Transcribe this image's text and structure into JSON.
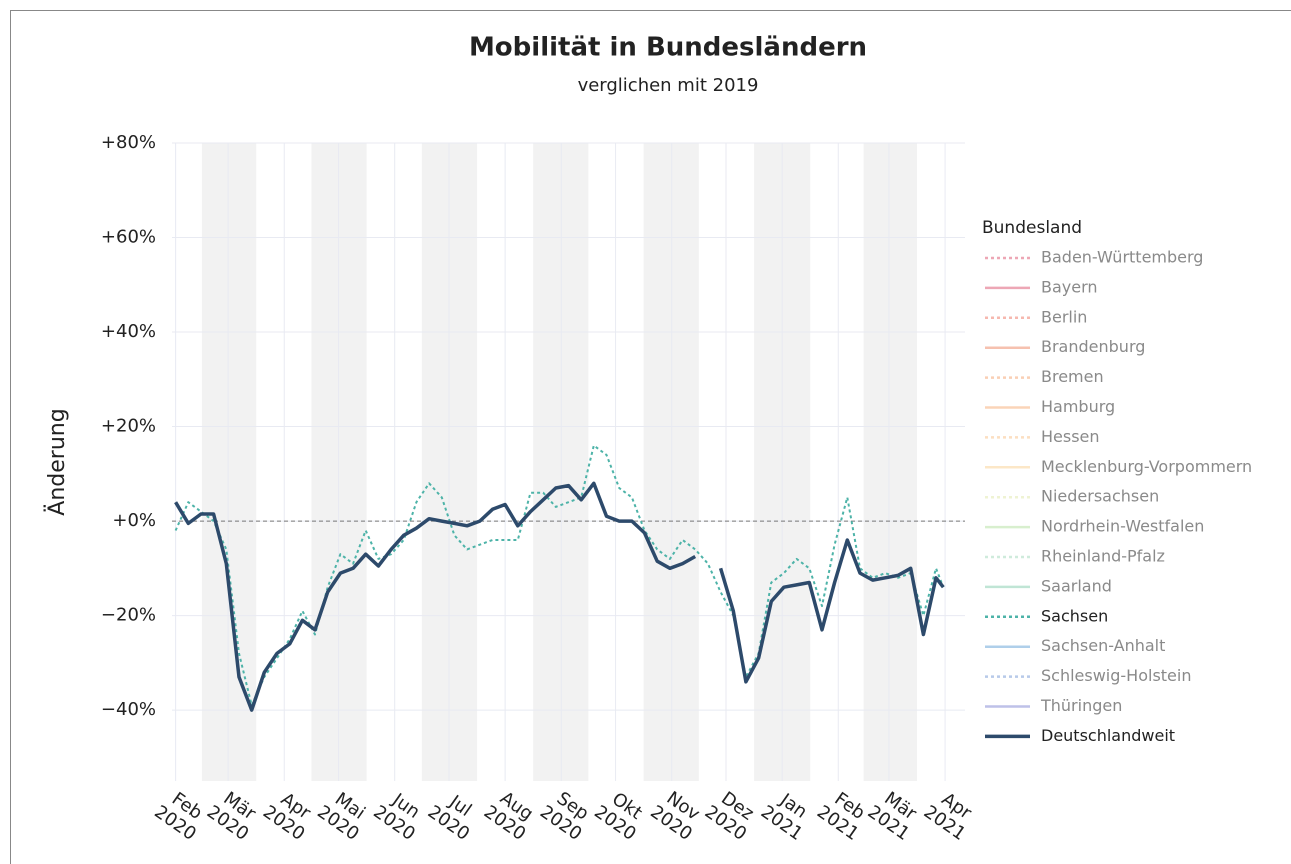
{
  "chart_data": {
    "type": "line",
    "title": "Mobilität in Bundesländern",
    "subtitle": "verglichen mit 2019",
    "y_label": "Änderung",
    "legend_title": "Bundesland",
    "legend": "right",
    "grid": true,
    "hline": 0,
    "xlim": [
      "2020-01-30",
      "2021-04-12"
    ],
    "ylim": [
      -55,
      80
    ],
    "yticks": [
      {
        "value": -40,
        "label": "−40%"
      },
      {
        "value": -20,
        "label": "−20%"
      },
      {
        "value": 0,
        "label": "+0%"
      },
      {
        "value": 20,
        "label": "+20%"
      },
      {
        "value": 40,
        "label": "+40%"
      },
      {
        "value": 60,
        "label": "+60%"
      },
      {
        "value": 80,
        "label": "+80%"
      }
    ],
    "xticks": [
      {
        "value": "2020-02",
        "label": "Feb 2020"
      },
      {
        "value": "2020-03",
        "label": "Mär 2020"
      },
      {
        "value": "2020-04",
        "label": "Apr 2020"
      },
      {
        "value": "2020-05",
        "label": "Mai 2020"
      },
      {
        "value": "2020-06",
        "label": "Jun 2020"
      },
      {
        "value": "2020-07",
        "label": "Jul 2020"
      },
      {
        "value": "2020-08",
        "label": "Aug 2020"
      },
      {
        "value": "2020-09",
        "label": "Sep 2020"
      },
      {
        "value": "2020-10",
        "label": "Okt 2020"
      },
      {
        "value": "2020-11",
        "label": "Nov 2020"
      },
      {
        "value": "2020-12",
        "label": "Dez 2020"
      },
      {
        "value": "2021-01",
        "label": "Jan 2021"
      },
      {
        "value": "2021-02",
        "label": "Feb 2021"
      },
      {
        "value": "2021-03",
        "label": "Mär 2021"
      },
      {
        "value": "2021-04",
        "label": "Apr 2021"
      }
    ],
    "x": [
      "2020-02-01",
      "2020-02-08",
      "2020-02-15",
      "2020-02-22",
      "2020-02-29",
      "2020-03-07",
      "2020-03-14",
      "2020-03-21",
      "2020-03-28",
      "2020-04-04",
      "2020-04-11",
      "2020-04-18",
      "2020-04-25",
      "2020-05-02",
      "2020-05-09",
      "2020-05-16",
      "2020-05-23",
      "2020-05-30",
      "2020-06-06",
      "2020-06-13",
      "2020-06-20",
      "2020-06-27",
      "2020-07-04",
      "2020-07-11",
      "2020-07-18",
      "2020-07-25",
      "2020-08-01",
      "2020-08-08",
      "2020-08-15",
      "2020-08-22",
      "2020-08-29",
      "2020-09-05",
      "2020-09-12",
      "2020-09-19",
      "2020-09-26",
      "2020-10-03",
      "2020-10-10",
      "2020-10-17",
      "2020-10-24",
      "2020-10-31",
      "2020-11-07",
      "2020-11-14",
      "2020-11-21",
      "2020-11-28",
      "2020-12-05",
      "2020-12-12",
      "2020-12-19",
      "2020-12-26",
      "2021-01-02",
      "2021-01-09",
      "2021-01-16",
      "2021-01-23",
      "2021-01-30",
      "2021-02-06",
      "2021-02-13",
      "2021-02-20",
      "2021-02-27",
      "2021-03-06",
      "2021-03-13",
      "2021-03-20",
      "2021-03-27",
      "2021-03-31"
    ],
    "series": [
      {
        "name": "Baden-Württemberg",
        "color": "#e0607a",
        "dash": "dot",
        "visible": false
      },
      {
        "name": "Bayern",
        "color": "#e0607a",
        "dash": "solid",
        "visible": false
      },
      {
        "name": "Berlin",
        "color": "#ef7f6f",
        "dash": "dot",
        "visible": false
      },
      {
        "name": "Brandenburg",
        "color": "#ef8f6f",
        "dash": "solid",
        "visible": false
      },
      {
        "name": "Bremen",
        "color": "#f5a97a",
        "dash": "dot",
        "visible": false
      },
      {
        "name": "Hamburg",
        "color": "#f7b27f",
        "dash": "solid",
        "visible": false
      },
      {
        "name": "Hessen",
        "color": "#fac58f",
        "dash": "dot",
        "visible": false
      },
      {
        "name": "Mecklenburg-Vorpommern",
        "color": "#fbd59a",
        "dash": "solid",
        "visible": false
      },
      {
        "name": "Niedersachsen",
        "color": "#e3ebb0",
        "dash": "dot",
        "visible": false
      },
      {
        "name": "Nordrhein-Westfalen",
        "color": "#b9e3a7",
        "dash": "solid",
        "visible": false
      },
      {
        "name": "Rheinland-Pfalz",
        "color": "#a8dcc0",
        "dash": "dot",
        "visible": false
      },
      {
        "name": "Saarland",
        "color": "#8ed0b4",
        "dash": "solid",
        "visible": false
      },
      {
        "name": "Sachsen",
        "color": "#4db3a8",
        "dash": "dot",
        "visible": true,
        "values": [
          -2,
          4,
          2,
          0,
          -6,
          -28,
          -39,
          -33,
          -29,
          -25,
          -19,
          -24,
          -14,
          -7,
          -9,
          -2,
          -8,
          -7,
          -4,
          4,
          8,
          5,
          -3,
          -6,
          -5,
          -4,
          -4,
          -4,
          6,
          6,
          3,
          4,
          5,
          16,
          14,
          7,
          5,
          -2,
          -6,
          -8,
          -4,
          -6,
          -9,
          -15,
          -20,
          -33,
          -28,
          -13,
          -11,
          -8,
          -10,
          -18,
          -5,
          5,
          -10,
          -12,
          -11,
          -12,
          -11,
          -20,
          -10,
          -14
        ]
      },
      {
        "name": "Sachsen-Anhalt",
        "color": "#6fa8d9",
        "dash": "solid",
        "visible": false
      },
      {
        "name": "Schleswig-Holstein",
        "color": "#7f9fd8",
        "dash": "dot",
        "visible": false
      },
      {
        "name": "Thüringen",
        "color": "#8a8fd6",
        "dash": "solid",
        "visible": false
      },
      {
        "name": "Deutschlandweit",
        "color": "#2d4a6b",
        "dash": "solid",
        "visible": true,
        "width": 3.5,
        "values": [
          4,
          -0.5,
          1.5,
          1.5,
          -9,
          -33,
          -40,
          -32,
          -28,
          -26,
          -21,
          -23,
          -15,
          -11,
          -10,
          -7,
          -9.5,
          -6,
          -3,
          -1.5,
          0.5,
          0,
          -0.5,
          -1,
          0,
          2.5,
          3.5,
          -1,
          2,
          4.5,
          7,
          7.5,
          4.5,
          8,
          1,
          0,
          0,
          -2.5,
          -8.5,
          -10,
          -9,
          -7.5,
          null,
          -10,
          -19,
          -34,
          -29,
          -17,
          -14,
          -13.5,
          -13,
          -23,
          -13,
          -4,
          -11,
          -12.5,
          -12,
          -11.5,
          -10,
          -24,
          -12,
          -14
        ]
      }
    ]
  }
}
